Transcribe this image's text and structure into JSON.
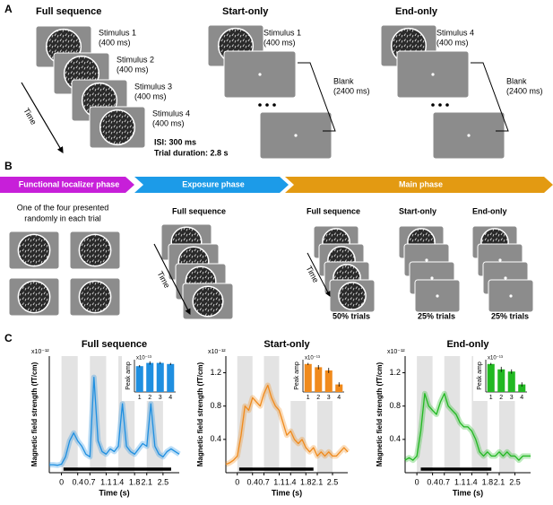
{
  "panel_a": {
    "letter": "A",
    "full": {
      "title": "Full sequence",
      "stimuli": [
        {
          "name": "Stimulus 1",
          "dur": "(400 ms)"
        },
        {
          "name": "Stimulus 2",
          "dur": "(400 ms)"
        },
        {
          "name": "Stimulus 3",
          "dur": "(400 ms)"
        },
        {
          "name": "Stimulus 4",
          "dur": "(400 ms)"
        }
      ],
      "time": "Time",
      "isi": "ISI: 300 ms",
      "trial": "Trial duration: 2.8 s"
    },
    "start": {
      "title": "Start-only",
      "stim": "Stimulus 1",
      "dur": "(400 ms)",
      "blank": "Blank",
      "blank_dur": "(2400 ms)"
    },
    "end": {
      "title": "End-only",
      "stim": "Stimulus 4",
      "dur": "(400 ms)",
      "blank": "Blank",
      "blank_dur": "(2400 ms)"
    }
  },
  "panel_b": {
    "letter": "B",
    "phases": [
      "Functional localizer phase",
      "Exposure phase",
      "Main phase"
    ],
    "localizer_note": [
      "One of the four presented",
      "randomly in each trial"
    ],
    "exposure_label": "Full sequence",
    "time": "Time",
    "main": [
      {
        "label": "Full sequence",
        "pct": "50% trials"
      },
      {
        "label": "Start-only",
        "pct": "25% trials"
      },
      {
        "label": "End-only",
        "pct": "25% trials"
      }
    ]
  },
  "panel_c": {
    "letter": "C",
    "charts": [
      {
        "type": "line",
        "title": "Full sequence",
        "ylabel": "Magnetic field strength (fT/cm)",
        "xlabel": "Time (s)",
        "multiplier": "x10⁻¹²",
        "color": "#1f8fe0",
        "xlim": [
          -0.3,
          2.9
        ],
        "xticks": [
          0,
          0.4,
          0.7,
          1.1,
          1.4,
          1.8,
          2.1,
          2.5
        ],
        "ylim": [
          0,
          2.2
        ],
        "stimulus_windows": [
          [
            0,
            0.4
          ],
          [
            0.7,
            1.1
          ],
          [
            1.4,
            1.8
          ],
          [
            2.1,
            2.5
          ]
        ],
        "significance_bar": [
          0.05,
          2.7
        ],
        "x": [
          -0.3,
          -0.2,
          -0.1,
          0,
          0.1,
          0.2,
          0.3,
          0.4,
          0.5,
          0.6,
          0.7,
          0.8,
          0.9,
          1,
          1.1,
          1.2,
          1.3,
          1.4,
          1.5,
          1.6,
          1.7,
          1.8,
          1.9,
          2,
          2.1,
          2.2,
          2.3,
          2.4,
          2.5,
          2.6,
          2.7,
          2.8,
          2.9
        ],
        "values": [
          0.15,
          0.15,
          0.14,
          0.16,
          0.3,
          0.6,
          0.75,
          0.6,
          0.5,
          0.35,
          0.3,
          1.8,
          0.6,
          0.4,
          0.35,
          0.45,
          0.4,
          0.5,
          1.3,
          0.5,
          0.4,
          0.35,
          0.45,
          0.55,
          0.5,
          1.3,
          0.5,
          0.35,
          0.3,
          0.4,
          0.45,
          0.4,
          0.35
        ],
        "inset": {
          "ylabel": "Peak amp",
          "multiplier": "x10⁻¹³",
          "ylim": [
            0,
            3
          ],
          "categories": [
            "1",
            "2",
            "3",
            "4"
          ],
          "values": [
            2.4,
            2.7,
            2.7,
            2.6
          ],
          "errors": [
            0.1,
            0.15,
            0.1,
            0.1
          ]
        }
      },
      {
        "type": "line",
        "title": "Start-only",
        "ylabel": "Magnetic field strength (fT/cm)",
        "xlabel": "Time (s)",
        "multiplier": "x10⁻¹²",
        "color": "#f08a1c",
        "xlim": [
          -0.3,
          2.9
        ],
        "xticks": [
          0,
          0.4,
          0.7,
          1.1,
          1.4,
          1.8,
          2.1,
          2.5
        ],
        "ylim": [
          0,
          1.4
        ],
        "yticks": [
          0.4,
          0.8,
          1.2
        ],
        "stimulus_windows": [
          [
            0,
            0.4
          ],
          [
            0.7,
            1.1
          ],
          [
            1.4,
            1.8
          ],
          [
            2.1,
            2.5
          ]
        ],
        "significance_bar": [
          0.05,
          2.0
        ],
        "x": [
          -0.3,
          -0.2,
          -0.1,
          0,
          0.1,
          0.2,
          0.3,
          0.4,
          0.5,
          0.6,
          0.7,
          0.8,
          0.9,
          1,
          1.1,
          1.2,
          1.3,
          1.4,
          1.5,
          1.6,
          1.7,
          1.8,
          1.9,
          2,
          2.1,
          2.2,
          2.3,
          2.4,
          2.5,
          2.6,
          2.7,
          2.8,
          2.9
        ],
        "values": [
          0.1,
          0.12,
          0.15,
          0.2,
          0.45,
          0.8,
          0.75,
          0.9,
          0.85,
          0.8,
          0.95,
          1.05,
          0.9,
          0.8,
          0.75,
          0.6,
          0.45,
          0.5,
          0.4,
          0.35,
          0.4,
          0.3,
          0.25,
          0.3,
          0.2,
          0.25,
          0.2,
          0.25,
          0.2,
          0.2,
          0.25,
          0.3,
          0.25
        ],
        "inset": {
          "ylabel": "Peak amp",
          "multiplier": "x10⁻¹³",
          "ylim": [
            0,
            1.5
          ],
          "categories": [
            "1",
            "2",
            "3",
            "4"
          ],
          "values": [
            1.3,
            1.15,
            1.0,
            0.35
          ],
          "errors": [
            0.05,
            0.1,
            0.12,
            0.1
          ]
        }
      },
      {
        "type": "line",
        "title": "End-only",
        "ylabel": "Magnetic field strength (fT/cm)",
        "xlabel": "Time (s)",
        "multiplier": "x10⁻¹²",
        "color": "#22b822",
        "xlim": [
          -0.3,
          2.9
        ],
        "xticks": [
          0,
          0.4,
          0.7,
          1.1,
          1.4,
          1.8,
          2.1,
          2.5
        ],
        "ylim": [
          0,
          1.4
        ],
        "yticks": [
          0.4,
          0.8,
          1.2
        ],
        "stimulus_windows": [
          [
            0,
            0.4
          ],
          [
            0.7,
            1.1
          ],
          [
            1.4,
            1.8
          ],
          [
            2.1,
            2.5
          ]
        ],
        "significance_bar": [
          0.1,
          1.9
        ],
        "x": [
          -0.3,
          -0.2,
          -0.1,
          0,
          0.1,
          0.2,
          0.3,
          0.4,
          0.5,
          0.6,
          0.7,
          0.8,
          0.9,
          1,
          1.1,
          1.2,
          1.3,
          1.4,
          1.5,
          1.6,
          1.7,
          1.8,
          1.9,
          2,
          2.1,
          2.2,
          2.3,
          2.4,
          2.5,
          2.6,
          2.7,
          2.8,
          2.9
        ],
        "values": [
          0.15,
          0.18,
          0.15,
          0.2,
          0.5,
          0.95,
          0.8,
          0.75,
          0.7,
          0.85,
          0.95,
          0.8,
          0.75,
          0.7,
          0.6,
          0.55,
          0.55,
          0.5,
          0.4,
          0.25,
          0.2,
          0.25,
          0.2,
          0.2,
          0.25,
          0.2,
          0.25,
          0.2,
          0.2,
          0.15,
          0.2,
          0.2,
          0.2
        ],
        "inset": {
          "ylabel": "Peak amp",
          "multiplier": "x10⁻¹³",
          "ylim": [
            0,
            1.5
          ],
          "categories": [
            "1",
            "2",
            "3",
            "4"
          ],
          "values": [
            1.3,
            1.05,
            0.95,
            0.35
          ],
          "errors": [
            0.05,
            0.12,
            0.1,
            0.1
          ]
        }
      }
    ]
  }
}
